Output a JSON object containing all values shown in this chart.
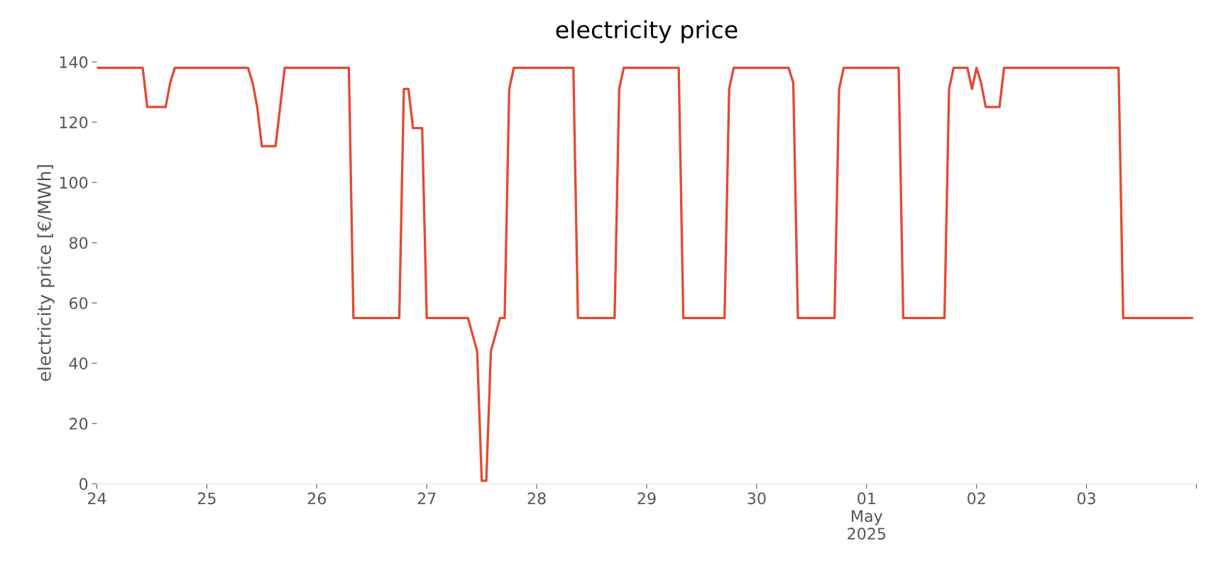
{
  "chart_data": {
    "type": "line",
    "title": "electricity price",
    "ylabel": "electricity price [€/MWh]",
    "x": [
      "2025-04-24T00:00",
      "2025-04-24T10:00",
      "2025-04-24T11:00",
      "2025-04-24T15:00",
      "2025-04-24T16:00",
      "2025-04-24T17:00",
      "2025-04-25T09:00",
      "2025-04-25T10:00",
      "2025-04-25T11:00",
      "2025-04-25T12:00",
      "2025-04-25T15:00",
      "2025-04-25T17:00",
      "2025-04-26T07:00",
      "2025-04-26T08:00",
      "2025-04-26T18:00",
      "2025-04-26T19:00",
      "2025-04-26T20:00",
      "2025-04-26T21:00",
      "2025-04-26T23:00",
      "2025-04-27T00:00",
      "2025-04-27T09:00",
      "2025-04-27T11:00",
      "2025-04-27T12:00",
      "2025-04-27T13:00",
      "2025-04-27T14:00",
      "2025-04-27T16:00",
      "2025-04-27T17:00",
      "2025-04-27T18:00",
      "2025-04-27T19:00",
      "2025-04-28T08:00",
      "2025-04-28T09:00",
      "2025-04-28T17:00",
      "2025-04-28T18:00",
      "2025-04-28T19:00",
      "2025-04-29T07:00",
      "2025-04-29T08:00",
      "2025-04-29T17:00",
      "2025-04-29T18:00",
      "2025-04-29T19:00",
      "2025-04-30T07:00",
      "2025-04-30T08:00",
      "2025-04-30T09:00",
      "2025-04-30T17:00",
      "2025-04-30T18:00",
      "2025-04-30T19:00",
      "2025-05-01T07:00",
      "2025-05-01T08:00",
      "2025-05-01T17:00",
      "2025-05-01T18:00",
      "2025-05-01T19:00",
      "2025-05-01T22:00",
      "2025-05-01T23:00",
      "2025-05-02T00:00",
      "2025-05-02T01:00",
      "2025-05-02T02:00",
      "2025-05-02T05:00",
      "2025-05-02T06:00",
      "2025-05-03T07:00",
      "2025-05-03T08:00",
      "2025-05-03T23:00"
    ],
    "series": [
      {
        "color": "#e24a33",
        "values": [
          138,
          138,
          125,
          125,
          133,
          138,
          138,
          133,
          125,
          112,
          112,
          138,
          138,
          55,
          55,
          131,
          131,
          118,
          118,
          55,
          55,
          44,
          1,
          1,
          44,
          55,
          55,
          131,
          138,
          138,
          55,
          55,
          131,
          138,
          138,
          55,
          55,
          131,
          138,
          138,
          133,
          55,
          55,
          131,
          138,
          138,
          55,
          55,
          131,
          138,
          138,
          131,
          138,
          133,
          125,
          125,
          138,
          138,
          55,
          55
        ]
      }
    ],
    "xlim": [
      "2025-04-24T00:00",
      "2025-05-04T00:00"
    ],
    "xticks": [
      {
        "value": "2025-04-24",
        "label": "24"
      },
      {
        "value": "2025-04-25",
        "label": "25"
      },
      {
        "value": "2025-04-26",
        "label": "26"
      },
      {
        "value": "2025-04-27",
        "label": "27"
      },
      {
        "value": "2025-04-28",
        "label": "28"
      },
      {
        "value": "2025-04-29",
        "label": "29"
      },
      {
        "value": "2025-04-30",
        "label": "30"
      },
      {
        "value": "2025-05-01",
        "label": "01\nMay\n2025"
      },
      {
        "value": "2025-05-02",
        "label": "02"
      },
      {
        "value": "2025-05-03",
        "label": "03"
      },
      {
        "value": "2025-05-04",
        "label": null
      }
    ],
    "ylim": [
      0,
      140
    ],
    "yticks": [
      0,
      20,
      40,
      60,
      80,
      100,
      120,
      140
    ],
    "grid": false,
    "line_style": "solid",
    "marker": "none"
  }
}
